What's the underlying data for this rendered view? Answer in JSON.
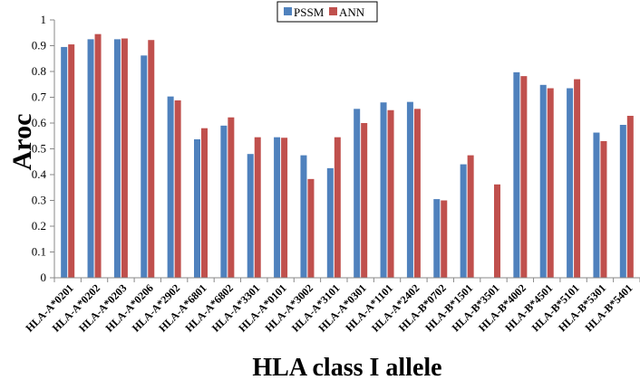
{
  "chart_data": {
    "type": "bar",
    "xlabel": "HLA class I allele",
    "ylabel": "Aroc",
    "ylim": [
      0,
      1
    ],
    "yticks": [
      "0",
      "0.1",
      "0.2",
      "0.3",
      "0.4",
      "0.5",
      "0.6",
      "0.7",
      "0.8",
      "0.9",
      "1"
    ],
    "grid": false,
    "legend_position": "top-center",
    "categories": [
      "HLA-A*0201",
      "HLA-A*0202",
      "HLA-A*0203",
      "HLA-A*0206",
      "HLA-A*2902",
      "HLA-A*6801",
      "HLA-A*6802",
      "HLA-A*3301",
      "HLA-A*0101",
      "HLA-A*3002",
      "HLA-A*3101",
      "HLA-A*0301",
      "HLA-A*1101",
      "HLA-A*2402",
      "HLA-B*0702",
      "HLA-B*1501",
      "HLA-B*3501",
      "HLA-B*4002",
      "HLA-B*4501",
      "HLA-B*5101",
      "HLA-B*5301",
      "HLA-B*5401"
    ],
    "series": [
      {
        "name": "PSSM",
        "color": "#4f81bd",
        "values": [
          0.895,
          0.925,
          0.925,
          0.862,
          0.703,
          0.537,
          0.59,
          0.48,
          0.545,
          0.475,
          0.425,
          0.655,
          0.68,
          0.682,
          0.305,
          0.44,
          null,
          0.797,
          0.748,
          0.735,
          0.563,
          0.593
        ]
      },
      {
        "name": "ANN",
        "color": "#c0504d",
        "values": [
          0.905,
          0.945,
          0.928,
          0.922,
          0.688,
          0.58,
          0.622,
          0.545,
          0.543,
          0.383,
          0.545,
          0.6,
          0.65,
          0.655,
          0.3,
          0.475,
          0.362,
          0.782,
          0.735,
          0.77,
          0.53,
          0.628
        ]
      }
    ]
  }
}
